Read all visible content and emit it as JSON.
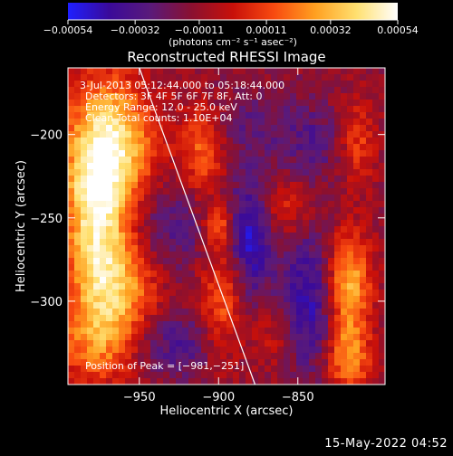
{
  "window": {
    "width": 500,
    "height": 500
  },
  "chart_data": {
    "type": "heatmap",
    "title": "Reconstructed RHESSI Image",
    "xlabel": "Heliocentric X (arcsec)",
    "ylabel": "Heliocentric Y (arcsec)",
    "xlim": [
      -995,
      -795
    ],
    "ylim": [
      -350,
      -160
    ],
    "x_ticks": [
      -950,
      -900,
      -850
    ],
    "y_ticks": [
      -200,
      -250,
      -300
    ],
    "x_tick_labels": [
      "−950",
      "−900",
      "−850"
    ],
    "y_tick_labels": [
      "−200",
      "−250",
      "−300"
    ],
    "colorbar": {
      "min": -0.00054,
      "max": 0.00054,
      "ticks": [
        -0.00054,
        -0.00032,
        -0.00011,
        0.00011,
        0.00032,
        0.00054
      ],
      "tick_labels": [
        "−0.00054",
        "−0.00032",
        "−0.00011",
        "0.00011",
        "0.00032",
        "0.00054"
      ],
      "units_label": "(photons cm⁻² s⁻¹ asec⁻²)",
      "colors": [
        "#1f1fff",
        "#3a0a9a",
        "#5a1a7a",
        "#8a1030",
        "#c8100a",
        "#f84a10",
        "#ffa020",
        "#ffe070",
        "#ffffff"
      ]
    },
    "annotations": {
      "time_range": "3-Jul-2013 05:12:44.000 to 05:18:44.000",
      "detectors": "Detectors: 3F 4F 5F 6F 7F 8F, Att: 0",
      "energy_range": "Energy Range: 12.0 - 25.0 keV",
      "clean_counts": "Clean     Total counts: 1.10E+04",
      "peak": "Position of Peak = [−981,−251]"
    },
    "limb_line": {
      "x": [
        -950,
        -877
      ],
      "y": [
        -160,
        -350
      ]
    },
    "blobs": [
      {
        "x": -968,
        "y": -207,
        "sigma_x": 20,
        "sigma_y": 30,
        "value": 0.00054
      },
      {
        "x": -978,
        "y": -252,
        "sigma_x": 14,
        "sigma_y": 35,
        "value": 0.00046
      },
      {
        "x": -962,
        "y": -290,
        "sigma_x": 18,
        "sigma_y": 20,
        "value": 0.00036
      },
      {
        "x": -975,
        "y": -325,
        "sigma_x": 20,
        "sigma_y": 18,
        "value": 0.00034
      },
      {
        "x": -910,
        "y": -210,
        "sigma_x": 10,
        "sigma_y": 20,
        "value": 0.0003
      },
      {
        "x": -898,
        "y": -300,
        "sigma_x": 10,
        "sigma_y": 25,
        "value": 0.0003
      },
      {
        "x": -900,
        "y": -255,
        "sigma_x": 6,
        "sigma_y": 8,
        "value": 0.0003
      },
      {
        "x": -858,
        "y": -245,
        "sigma_x": 12,
        "sigma_y": 12,
        "value": 0.0002
      },
      {
        "x": -865,
        "y": -320,
        "sigma_x": 10,
        "sigma_y": 14,
        "value": 0.00014
      },
      {
        "x": -818,
        "y": -290,
        "sigma_x": 10,
        "sigma_y": 22,
        "value": 0.00045
      },
      {
        "x": -818,
        "y": -335,
        "sigma_x": 10,
        "sigma_y": 15,
        "value": 0.00035
      },
      {
        "x": -812,
        "y": -205,
        "sigma_x": 8,
        "sigma_y": 18,
        "value": 0.00022
      },
      {
        "x": -878,
        "y": -195,
        "sigma_x": 22,
        "sigma_y": 15,
        "value": -0.00012
      },
      {
        "x": -880,
        "y": -262,
        "sigma_x": 10,
        "sigma_y": 25,
        "value": -0.00035
      },
      {
        "x": -843,
        "y": -300,
        "sigma_x": 12,
        "sigma_y": 30,
        "value": -0.0003
      },
      {
        "x": -932,
        "y": -255,
        "sigma_x": 18,
        "sigma_y": 20,
        "value": -0.0002
      },
      {
        "x": -930,
        "y": -325,
        "sigma_x": 22,
        "sigma_y": 14,
        "value": -0.00022
      },
      {
        "x": -840,
        "y": -205,
        "sigma_x": 12,
        "sigma_y": 15,
        "value": -0.00015
      }
    ]
  },
  "footer": {
    "date": "15-May-2022 04:52"
  }
}
